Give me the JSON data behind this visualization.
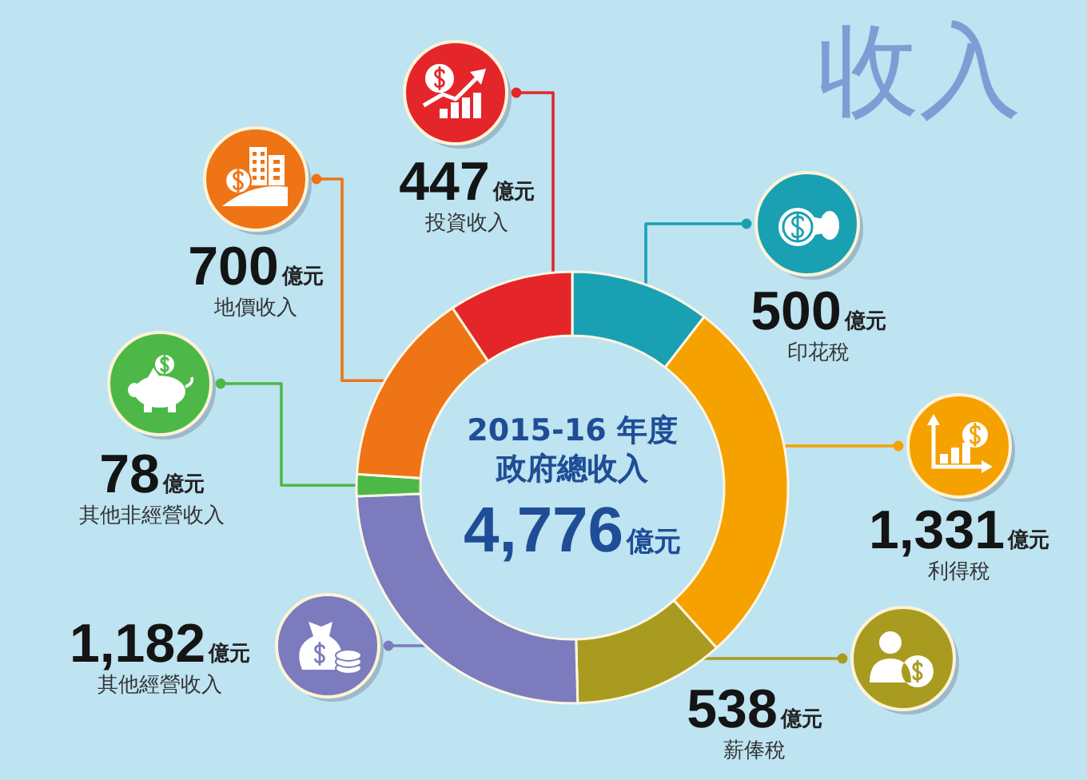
{
  "chart_data": {
    "type": "donut",
    "title": "收入",
    "categories": [
      "印花稅",
      "利得稅",
      "薪俸稅",
      "其他經營收入",
      "其他非經營收入",
      "地價收入",
      "投資收入"
    ],
    "values": [
      500,
      1331,
      538,
      1182,
      78,
      700,
      447
    ],
    "colors": [
      "#1aa0b3",
      "#f5a100",
      "#a99b1f",
      "#7b7bbd",
      "#4db848",
      "#ef7415",
      "#e4262b"
    ],
    "value_labels": [
      "500億元",
      "1,331億元",
      "538億元",
      "1,182億元",
      "78億元",
      "700億元",
      "447億元"
    ],
    "annotations": [
      "2015-16 年度",
      "政府總收入",
      "4,776億元"
    ]
  }
}
